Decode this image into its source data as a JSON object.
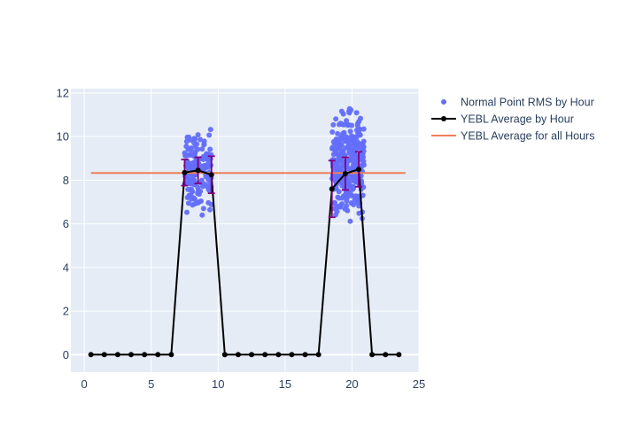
{
  "chart_data": {
    "type": "scatter",
    "title": "",
    "xlabel": "",
    "ylabel": "",
    "xlim": [
      -1,
      25
    ],
    "ylim": [
      -0.8,
      12.2
    ],
    "x_ticks": [
      0,
      5,
      10,
      15,
      20,
      25
    ],
    "y_ticks": [
      0,
      2,
      4,
      6,
      8,
      10,
      12
    ],
    "grid": true,
    "legend_position": "top-right",
    "colors": {
      "plot_bg": "#e5ecf6",
      "grid": "#ffffff",
      "points": "#636efa",
      "avg_line": "#000000",
      "overall_line": "#ef7f58",
      "error_bars": "#800080",
      "tick_text": "#2a3f5f"
    },
    "series": [
      {
        "name": "Normal Point RMS by Hour",
        "type": "scatter",
        "clusters": [
          {
            "x_range": [
              7.5,
              9.5
            ],
            "y_range": [
              5.8,
              10.5
            ],
            "count": 150
          },
          {
            "x_range": [
              18.5,
              20.9
            ],
            "y_range": [
              5.3,
              11.4
            ],
            "count": 320
          }
        ]
      },
      {
        "name": "YEBL Average by Hour",
        "type": "line",
        "x": [
          0.5,
          1.5,
          2.5,
          3.5,
          4.5,
          5.5,
          6.5,
          7.5,
          8.5,
          9.5,
          10.5,
          11.5,
          12.5,
          13.5,
          14.5,
          15.5,
          16.5,
          17.5,
          18.5,
          19.5,
          20.5,
          21.5,
          22.5,
          23.5
        ],
        "y": [
          0,
          0,
          0,
          0,
          0,
          0,
          0,
          8.35,
          8.45,
          8.25,
          0,
          0,
          0,
          0,
          0,
          0,
          0,
          0,
          7.6,
          8.3,
          8.5,
          0,
          0,
          0
        ],
        "error": [
          0,
          0,
          0,
          0,
          0,
          0,
          0,
          0.6,
          0.6,
          0.85,
          0,
          0,
          0,
          0,
          0,
          0,
          0,
          0,
          1.3,
          0.75,
          0.8,
          0,
          0,
          0
        ]
      },
      {
        "name": "YEBL Average for all Hours",
        "type": "line",
        "x": [
          0.5,
          24.0
        ],
        "y": [
          8.33,
          8.33
        ]
      }
    ]
  }
}
